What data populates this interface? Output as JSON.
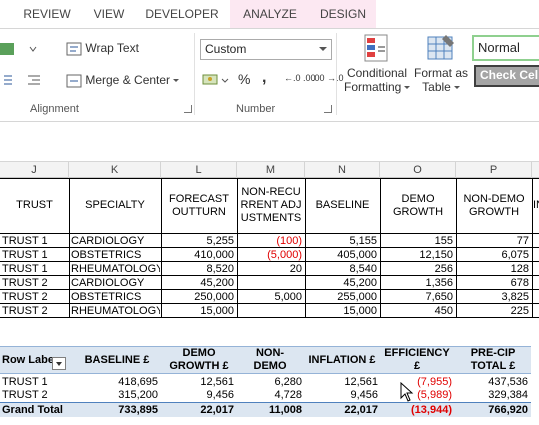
{
  "ribbon_tabs": [
    "REVIEW",
    "VIEW",
    "DEVELOPER",
    "ANALYZE",
    "DESIGN"
  ],
  "alignment": {
    "wrap_text": "Wrap Text",
    "merge_center": "Merge & Center",
    "group_label": "Alignment"
  },
  "number": {
    "format_value": "Custom",
    "percent": "%",
    "comma": ",",
    "inc_decimal": "←.0 .00",
    "dec_decimal": ".00 →.0",
    "group_label": "Number"
  },
  "styles": {
    "conditional_1": "Conditional",
    "conditional_2": "Formatting",
    "format_table_1": "Format as",
    "format_table_2": "Table",
    "normal": "Normal",
    "check_cell": "Check Cel"
  },
  "columns": [
    "J",
    "K",
    "L",
    "M",
    "N",
    "O",
    "P"
  ],
  "table_headers": {
    "trust": "TRUST",
    "specialty": "SPECIALTY",
    "forecast": "FORECAST OUTTURN",
    "nonrecurrent": "NON-RECURRENT ADJUSTMENTS",
    "baseline": "BASELINE",
    "demo": "DEMO GROWTH",
    "nondemo": "NON-DEMO GROWTH",
    "next": "IN"
  },
  "rows": [
    {
      "trust": "TRUST 1",
      "specialty": "CARDIOLOGY",
      "forecast": "5,255",
      "adj": "(100)",
      "adj_neg": true,
      "baseline": "5,155",
      "demo": "155",
      "nondemo": "77"
    },
    {
      "trust": "TRUST 1",
      "specialty": "OBSTETRICS",
      "forecast": "410,000",
      "adj": "(5,000)",
      "adj_neg": true,
      "baseline": "405,000",
      "demo": "12,150",
      "nondemo": "6,075"
    },
    {
      "trust": "TRUST 1",
      "specialty": "RHEUMATOLOGY",
      "forecast": "8,520",
      "adj": "20",
      "adj_neg": false,
      "baseline": "8,540",
      "demo": "256",
      "nondemo": "128"
    },
    {
      "trust": "TRUST 2",
      "specialty": "CARDIOLOGY",
      "forecast": "45,200",
      "adj": "",
      "adj_neg": false,
      "baseline": "45,200",
      "demo": "1,356",
      "nondemo": "678"
    },
    {
      "trust": "TRUST 2",
      "specialty": "OBSTETRICS",
      "forecast": "250,000",
      "adj": "5,000",
      "adj_neg": false,
      "baseline": "255,000",
      "demo": "7,650",
      "nondemo": "3,825"
    },
    {
      "trust": "TRUST 2",
      "specialty": "RHEUMATOLOGY",
      "forecast": "15,000",
      "adj": "",
      "adj_neg": false,
      "baseline": "15,000",
      "demo": "450",
      "nondemo": "225"
    }
  ],
  "pivot": {
    "headers": {
      "row_labels": "Row Labe",
      "baseline": "BASELINE £",
      "demo": "DEMO GROWTH £",
      "nondemo": "NON-DEMO",
      "inflation": "INFLATION £",
      "efficiency": "EFFICIENCY £",
      "precip": "PRE-CIP TOTAL £"
    },
    "rows": [
      {
        "label": "TRUST 1",
        "baseline": "418,695",
        "demo": "12,561",
        "nondemo": "6,280",
        "inflation": "12,561",
        "efficiency": "(7,955)",
        "precip": "437,536"
      },
      {
        "label": "TRUST 2",
        "baseline": "315,200",
        "demo": "9,456",
        "nondemo": "4,728",
        "inflation": "9,456",
        "efficiency": "(5,989)",
        "precip": "329,384"
      }
    ],
    "total": {
      "label": "Grand Total",
      "baseline": "733,895",
      "demo": "22,017",
      "nondemo": "11,008",
      "inflation": "22,017",
      "efficiency": "(13,944)",
      "precip": "766,920"
    }
  }
}
